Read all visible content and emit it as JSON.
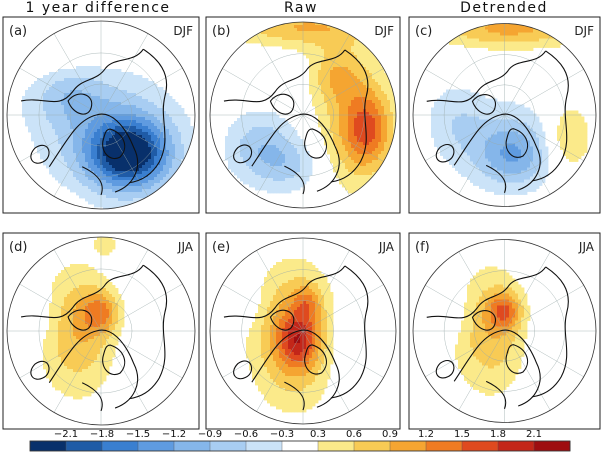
{
  "chart_data": {
    "type": "heatmap",
    "projection": "north-polar-stereographic",
    "column_titles": [
      "1 year difference",
      "Raw",
      "Detrended"
    ],
    "panels": [
      {
        "label": "(a)",
        "season": "DJF",
        "column": "1 year difference"
      },
      {
        "label": "(b)",
        "season": "DJF",
        "column": "Raw"
      },
      {
        "label": "(c)",
        "season": "DJF",
        "column": "Detrended"
      },
      {
        "label": "(d)",
        "season": "JJA",
        "column": "1 year difference"
      },
      {
        "label": "(e)",
        "season": "JJA",
        "column": "Raw"
      },
      {
        "label": "(f)",
        "season": "JJA",
        "column": "Detrended"
      }
    ],
    "colorbar": {
      "ticks": [
        "−2.1",
        "−1.8",
        "−1.5",
        "−1.2",
        "−0.9",
        "−0.6",
        "−0.3",
        "0.3",
        "0.6",
        "0.9",
        "1.2",
        "1.5",
        "1.8",
        "2.1"
      ],
      "colors": [
        "#08306b",
        "#1f5ba6",
        "#3a7fd0",
        "#5f9be0",
        "#85b6ea",
        "#a8cdf2",
        "#cbe3f8",
        "#ffffff",
        "#fbea8a",
        "#f8cb55",
        "#f5a531",
        "#ef7b22",
        "#df4a1f",
        "#c32619",
        "#9e0d10"
      ]
    },
    "fields": [
      {
        "blobs": [
          {
            "cx": -0.45,
            "cy": -0.68,
            "rx": 0.55,
            "ry": 0.35,
            "v": 0.45
          },
          {
            "cx": 0.72,
            "cy": -0.85,
            "rx": 0.38,
            "ry": 0.2,
            "v": 0.4
          },
          {
            "cx": -0.9,
            "cy": 0.9,
            "rx": 0.45,
            "ry": 0.12,
            "v": 0.45
          },
          {
            "cx": -0.1,
            "cy": 0.0,
            "rx": 0.85,
            "ry": 0.8,
            "v": -0.45
          },
          {
            "cx": -0.35,
            "cy": -0.25,
            "rx": 0.4,
            "ry": 0.35,
            "v": -0.55
          },
          {
            "cx": 0.28,
            "cy": 0.38,
            "rx": 0.55,
            "ry": 0.48,
            "v": -1.2
          },
          {
            "cx": 0.3,
            "cy": 0.42,
            "rx": 0.38,
            "ry": 0.32,
            "v": -1.3
          }
        ]
      },
      {
        "blobs": [
          {
            "cx": 0.0,
            "cy": -0.95,
            "rx": 0.8,
            "ry": 0.22,
            "v": 0.9
          },
          {
            "cx": 0.55,
            "cy": 0.1,
            "rx": 0.42,
            "ry": 0.72,
            "v": 0.8
          },
          {
            "cx": 0.7,
            "cy": 0.15,
            "rx": 0.25,
            "ry": 0.4,
            "v": 1.0
          },
          {
            "cx": 0.35,
            "cy": -0.45,
            "rx": 0.28,
            "ry": 0.3,
            "v": 0.6
          },
          {
            "cx": -0.45,
            "cy": 0.35,
            "rx": 0.4,
            "ry": 0.4,
            "v": -0.8
          },
          {
            "cx": -0.1,
            "cy": 0.55,
            "rx": 0.35,
            "ry": 0.3,
            "v": -0.5
          }
        ]
      },
      {
        "blobs": [
          {
            "cx": 0.05,
            "cy": -0.95,
            "rx": 0.85,
            "ry": 0.22,
            "v": 1.0
          },
          {
            "cx": 0.7,
            "cy": 0.25,
            "rx": 0.25,
            "ry": 0.38,
            "v": 0.75
          },
          {
            "cx": 0.05,
            "cy": 0.35,
            "rx": 0.55,
            "ry": 0.5,
            "v": -0.7
          },
          {
            "cx": 0.1,
            "cy": 0.45,
            "rx": 0.35,
            "ry": 0.3,
            "v": -0.6
          },
          {
            "cx": -0.55,
            "cy": 0.05,
            "rx": 0.35,
            "ry": 0.45,
            "v": -0.45
          }
        ]
      },
      {
        "blobs": [
          {
            "cx": 0.05,
            "cy": -0.92,
            "rx": 0.12,
            "ry": 0.1,
            "v": 0.5
          },
          {
            "cx": -0.25,
            "cy": 0.0,
            "rx": 0.42,
            "ry": 0.68,
            "v": 0.9
          },
          {
            "cx": 0.0,
            "cy": -0.2,
            "rx": 0.2,
            "ry": 0.22,
            "v": 0.9
          },
          {
            "cx": -0.75,
            "cy": -0.15,
            "rx": 0.3,
            "ry": 0.3,
            "v": -0.35
          },
          {
            "cx": 0.6,
            "cy": 0.0,
            "rx": 0.35,
            "ry": 0.6,
            "v": -0.3
          }
        ]
      },
      {
        "blobs": [
          {
            "cx": -0.1,
            "cy": 0.05,
            "rx": 0.45,
            "ry": 0.72,
            "v": 1.15
          },
          {
            "cx": -0.05,
            "cy": 0.1,
            "rx": 0.2,
            "ry": 0.28,
            "v": 1.0
          },
          {
            "cx": 0.05,
            "cy": -0.3,
            "rx": 0.15,
            "ry": 0.2,
            "v": 0.6
          },
          {
            "cx": -0.7,
            "cy": -0.3,
            "rx": 0.28,
            "ry": 0.25,
            "v": -0.35
          },
          {
            "cx": 0.55,
            "cy": 0.1,
            "rx": 0.35,
            "ry": 0.5,
            "v": -0.3
          }
        ]
      },
      {
        "blobs": [
          {
            "cx": -0.15,
            "cy": 0.0,
            "rx": 0.42,
            "ry": 0.68,
            "v": 0.85
          },
          {
            "cx": 0.0,
            "cy": -0.22,
            "rx": 0.18,
            "ry": 0.2,
            "v": 1.0
          },
          {
            "cx": -0.7,
            "cy": -0.2,
            "rx": 0.3,
            "ry": 0.28,
            "v": -0.4
          },
          {
            "cx": 0.6,
            "cy": 0.05,
            "rx": 0.35,
            "ry": 0.55,
            "v": -0.3
          }
        ]
      }
    ]
  }
}
